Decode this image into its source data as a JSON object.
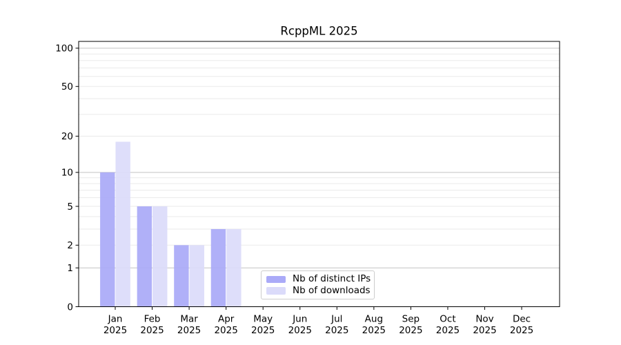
{
  "chart_data": {
    "type": "bar",
    "title": "RcppML 2025",
    "categories": [
      {
        "month": "Jan",
        "year": "2025"
      },
      {
        "month": "Feb",
        "year": "2025"
      },
      {
        "month": "Mar",
        "year": "2025"
      },
      {
        "month": "Apr",
        "year": "2025"
      },
      {
        "month": "May",
        "year": "2025"
      },
      {
        "month": "Jun",
        "year": "2025"
      },
      {
        "month": "Jul",
        "year": "2025"
      },
      {
        "month": "Aug",
        "year": "2025"
      },
      {
        "month": "Sep",
        "year": "2025"
      },
      {
        "month": "Oct",
        "year": "2025"
      },
      {
        "month": "Nov",
        "year": "2025"
      },
      {
        "month": "Dec",
        "year": "2025"
      }
    ],
    "series": [
      {
        "name": "Nb of distinct IPs",
        "color": "#aaaaf8",
        "values": [
          10,
          5,
          2,
          3,
          0,
          0,
          0,
          0,
          0,
          0,
          0,
          0
        ]
      },
      {
        "name": "Nb of downloads",
        "color": "#dbdbfa",
        "values": [
          18,
          5,
          2,
          3,
          0,
          0,
          0,
          0,
          0,
          0,
          0,
          0
        ]
      }
    ],
    "yscale": "log1p",
    "ylim": [
      0,
      113
    ],
    "ytick_labels": [
      0,
      1,
      2,
      5,
      10,
      20,
      50,
      100
    ],
    "grid_major_values": [
      1,
      10,
      100
    ],
    "grid_minor_values": [
      2,
      3,
      4,
      5,
      6,
      7,
      8,
      9,
      20,
      30,
      40,
      50,
      60,
      70,
      80,
      90
    ],
    "grid": true,
    "legend_position": "inside-bottom-center",
    "xlabel": "",
    "ylabel": ""
  },
  "colors": {
    "background": "#ffffff",
    "axis": "#000000",
    "grid_major": "#c2c2c2",
    "grid_minor": "#eaeaea",
    "text": "#000000",
    "legend_border": "#cccccc"
  }
}
